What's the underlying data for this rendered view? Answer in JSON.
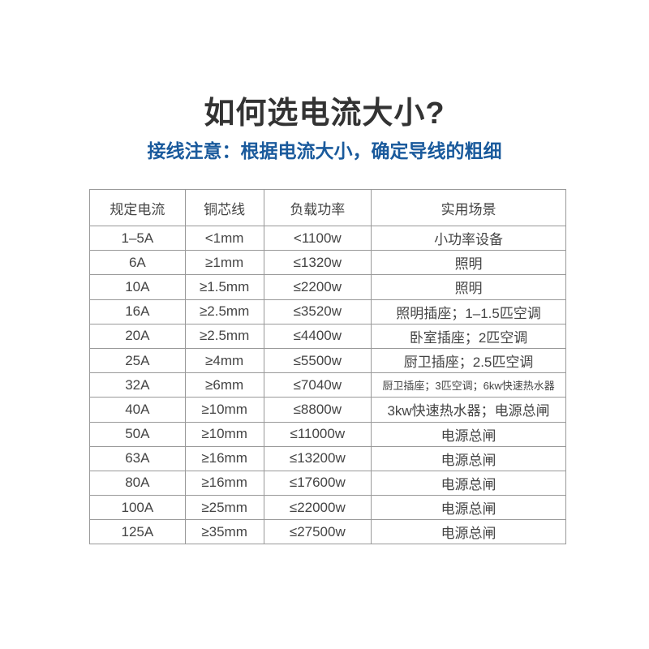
{
  "title": "如何选电流大小?",
  "subtitle": "接线注意：根据电流大小，确定导线的粗细",
  "table": {
    "headers": [
      "规定电流",
      "铜芯线",
      "负载功率",
      "实用场景"
    ],
    "rows": [
      [
        "1–5A",
        "<1mm",
        "<1100w",
        "小功率设备"
      ],
      [
        "6A",
        "≥1mm",
        "≤1320w",
        "照明"
      ],
      [
        "10A",
        "≥1.5mm",
        "≤2200w",
        "照明"
      ],
      [
        "16A",
        "≥2.5mm",
        "≤3520w",
        "照明插座；1–1.5匹空调"
      ],
      [
        "20A",
        "≥2.5mm",
        "≤4400w",
        "卧室插座；2匹空调"
      ],
      [
        "25A",
        "≥4mm",
        "≤5500w",
        "厨卫插座；2.5匹空调"
      ],
      [
        "32A",
        "≥6mm",
        "≤7040w",
        "厨卫插座；3匹空调；6kw快速热水器"
      ],
      [
        "40A",
        "≥10mm",
        "≤8800w",
        "3kw快速热水器；电源总闸"
      ],
      [
        "50A",
        "≥10mm",
        "≤11000w",
        "电源总闸"
      ],
      [
        "63A",
        "≥16mm",
        "≤13200w",
        "电源总闸"
      ],
      [
        "80A",
        "≥16mm",
        "≤17600w",
        "电源总闸"
      ],
      [
        "100A",
        "≥25mm",
        "≤22000w",
        "电源总闸"
      ],
      [
        "125A",
        "≥35mm",
        "≤27500w",
        "电源总闸"
      ]
    ]
  }
}
